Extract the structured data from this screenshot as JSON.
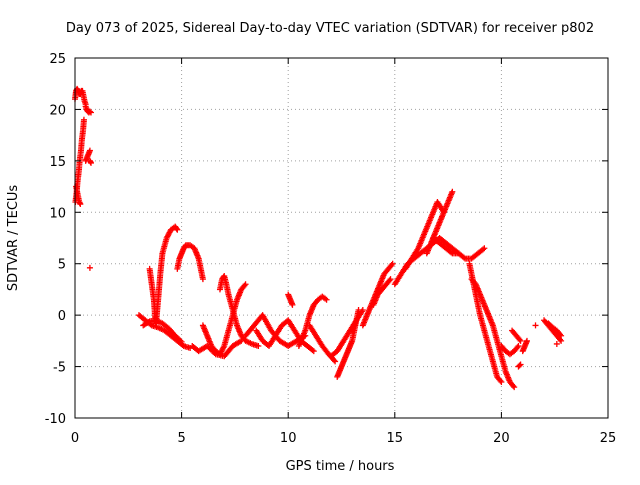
{
  "chart_data": {
    "type": "scatter",
    "title": "Day 073 of 2025, Sidereal Day-to-day VTEC variation (SDTVAR) for receiver p802",
    "xlabel": "GPS time / hours",
    "ylabel": "SDTVAR / TECUs",
    "xlim": [
      0,
      25
    ],
    "ylim": [
      -10,
      25
    ],
    "xticks": [
      0,
      5,
      10,
      15,
      20,
      25
    ],
    "yticks": [
      -10,
      -5,
      0,
      5,
      10,
      15,
      20,
      25
    ],
    "grid": true,
    "marker": "+",
    "series": [
      {
        "name": "SDTVAR",
        "color": "#ff0000",
        "segments": [
          {
            "x": [
              0.0,
              0.05,
              0.1,
              0.15,
              0.2,
              0.25,
              0.3,
              0.35,
              0.4,
              0.45,
              0.5
            ],
            "y": [
              21.0,
              21.8,
              22.0,
              21.8,
              21.5,
              21.5,
              21.8,
              21.8,
              21.3,
              20.8,
              20.5
            ]
          },
          {
            "x": [
              0.5,
              0.55,
              0.6,
              0.65,
              0.7,
              0.75
            ],
            "y": [
              20.3,
              20.0,
              19.8,
              19.7,
              19.8,
              19.7
            ]
          },
          {
            "x": [
              0.02,
              0.05,
              0.08,
              0.1,
              0.12,
              0.15,
              0.18,
              0.2,
              0.22,
              0.25,
              0.28,
              0.3,
              0.32,
              0.35,
              0.38,
              0.4,
              0.42
            ],
            "y": [
              11.0,
              11.5,
              12.0,
              12.5,
              13.0,
              13.5,
              14.0,
              14.5,
              15.0,
              15.5,
              16.0,
              16.5,
              17.0,
              17.5,
              18.0,
              18.5,
              19.0
            ]
          },
          {
            "x": [
              0.05,
              0.1,
              0.15,
              0.2,
              0.25
            ],
            "y": [
              12.5,
              12.0,
              11.5,
              11.0,
              10.8
            ]
          },
          {
            "x": [
              0.5,
              0.6,
              0.7
            ],
            "y": [
              15.0,
              15.5,
              16.0
            ]
          },
          {
            "x": [
              0.7,
              0.75
            ],
            "y": [
              15.0,
              14.8
            ]
          },
          {
            "x": [
              3.0,
              3.3,
              3.6,
              3.9,
              4.2,
              4.5,
              4.8,
              5.1,
              5.4
            ],
            "y": [
              0.0,
              -0.5,
              -1.0,
              -1.2,
              -1.5,
              -2.0,
              -2.5,
              -3.0,
              -3.2
            ]
          },
          {
            "x": [
              3.2,
              3.5,
              3.8,
              4.1,
              4.4,
              4.7,
              5.0
            ],
            "y": [
              -1.0,
              -0.6,
              -0.5,
              -0.8,
              -1.3,
              -2.0,
              -2.6
            ]
          },
          {
            "x": [
              3.5,
              3.6,
              3.7,
              3.75,
              3.8,
              3.9,
              4.0,
              4.1,
              4.3,
              4.5,
              4.7,
              4.8
            ],
            "y": [
              4.5,
              3.0,
              1.5,
              0.0,
              -0.8,
              1.5,
              4.0,
              6.0,
              7.5,
              8.3,
              8.6,
              8.3
            ]
          },
          {
            "x": [
              4.8,
              4.85,
              4.9,
              5.0,
              5.1,
              5.2,
              5.4,
              5.6,
              5.8,
              5.9,
              6.0
            ],
            "y": [
              4.5,
              5.0,
              5.5,
              6.0,
              6.5,
              6.8,
              6.8,
              6.5,
              5.5,
              4.5,
              3.5
            ]
          },
          {
            "x": [
              5.5,
              5.8,
              6.2,
              6.6,
              7.0,
              7.4,
              7.8
            ],
            "y": [
              -3.0,
              -3.5,
              -3.0,
              -3.8,
              -4.0,
              -3.0,
              -2.5
            ]
          },
          {
            "x": [
              6.0,
              6.2,
              6.4,
              6.6,
              6.8,
              7.0,
              7.2,
              7.4,
              7.6,
              7.8,
              8.0
            ],
            "y": [
              -1.0,
              -2.0,
              -3.0,
              -3.5,
              -3.8,
              -3.0,
              -1.5,
              0.0,
              1.5,
              2.5,
              3.0
            ]
          },
          {
            "x": [
              6.8,
              6.9,
              7.0,
              7.1,
              7.2,
              7.4,
              7.6,
              7.8,
              8.0,
              8.3,
              8.6
            ],
            "y": [
              2.5,
              3.5,
              3.8,
              3.0,
              2.0,
              0.5,
              -1.0,
              -2.0,
              -2.5,
              -2.8,
              -3.0
            ]
          },
          {
            "x": [
              8.0,
              8.4,
              8.8,
              9.2,
              9.6,
              10.0,
              10.4,
              10.8
            ],
            "y": [
              -2.0,
              -1.0,
              0.0,
              -1.5,
              -2.5,
              -3.0,
              -2.5,
              -2.0
            ]
          },
          {
            "x": [
              8.5,
              8.8,
              9.1,
              9.4,
              9.7,
              10.0,
              10.3,
              10.6,
              10.9,
              11.2
            ],
            "y": [
              -1.5,
              -2.5,
              -3.0,
              -2.0,
              -1.0,
              -0.5,
              -1.5,
              -2.5,
              -3.0,
              -3.5
            ]
          },
          {
            "x": [
              10.0,
              10.1,
              10.2
            ],
            "y": [
              2.0,
              1.5,
              1.0
            ]
          },
          {
            "x": [
              10.5,
              10.8,
              11.0,
              11.2,
              11.4,
              11.6,
              11.8
            ],
            "y": [
              -3.0,
              -1.5,
              0.0,
              1.0,
              1.5,
              1.8,
              1.5
            ]
          },
          {
            "x": [
              11.0,
              11.3,
              11.6,
              11.9,
              12.2
            ],
            "y": [
              -1.0,
              -2.0,
              -3.0,
              -3.8,
              -4.5
            ]
          },
          {
            "x": [
              12.0,
              12.3,
              12.6,
              12.9,
              13.2,
              13.5
            ],
            "y": [
              -4.0,
              -3.5,
              -2.5,
              -1.5,
              -0.5,
              0.5
            ]
          },
          {
            "x": [
              12.3,
              12.4,
              12.5,
              12.6,
              12.7,
              12.8,
              12.9,
              13.0,
              13.1,
              13.2,
              13.3
            ],
            "y": [
              -6.0,
              -5.5,
              -5.0,
              -4.5,
              -4.0,
              -3.5,
              -3.0,
              -2.5,
              -1.5,
              -0.5,
              0.5
            ]
          },
          {
            "x": [
              13.0,
              13.1,
              13.2
            ],
            "y": [
              -1.5,
              -1.0,
              -0.5
            ]
          },
          {
            "x": [
              13.5,
              13.7,
              13.9,
              14.1,
              14.3,
              14.5,
              14.7,
              14.9
            ],
            "y": [
              -1.0,
              0.0,
              1.0,
              2.0,
              3.0,
              4.0,
              4.5,
              5.0
            ]
          },
          {
            "x": [
              14.0,
              14.2,
              14.4,
              14.6,
              14.8
            ],
            "y": [
              1.0,
              2.0,
              2.5,
              3.0,
              3.5
            ]
          },
          {
            "x": [
              15.0,
              15.3,
              15.6,
              15.9,
              16.2,
              16.5,
              16.8,
              17.1,
              17.4,
              17.7,
              18.0
            ],
            "y": [
              3.0,
              4.0,
              5.0,
              5.5,
              6.0,
              6.5,
              7.0,
              7.5,
              7.0,
              6.5,
              6.0
            ]
          },
          {
            "x": [
              15.5,
              15.8,
              16.1,
              16.4,
              16.7,
              17.0,
              17.3
            ],
            "y": [
              4.5,
              5.5,
              6.5,
              8.0,
              9.5,
              11.0,
              10.0
            ]
          },
          {
            "x": [
              16.5,
              16.7,
              16.9,
              17.1,
              17.3,
              17.5,
              17.7
            ],
            "y": [
              6.0,
              7.0,
              8.0,
              9.0,
              10.0,
              11.0,
              12.0
            ]
          },
          {
            "x": [
              16.8,
              17.1,
              17.4,
              17.7,
              18.0,
              18.3,
              18.6,
              18.9,
              19.2
            ],
            "y": [
              7.5,
              7.0,
              6.5,
              6.0,
              6.0,
              5.5,
              5.5,
              6.0,
              6.5
            ]
          },
          {
            "x": [
              18.5,
              18.6,
              18.8,
              19.0,
              19.2,
              19.4,
              19.6,
              19.8,
              20.0
            ],
            "y": [
              5.0,
              4.0,
              2.0,
              0.0,
              -1.5,
              -3.0,
              -4.5,
              -6.0,
              -6.5
            ]
          },
          {
            "x": [
              18.6,
              18.8,
              19.0,
              19.2,
              19.4,
              19.6,
              19.8,
              20.0,
              20.2,
              20.4,
              20.6
            ],
            "y": [
              3.5,
              3.0,
              2.0,
              1.0,
              0.0,
              -1.0,
              -2.5,
              -4.0,
              -5.5,
              -6.5,
              -7.0
            ]
          },
          {
            "x": [
              20.0,
              20.2,
              20.4,
              20.6,
              20.8
            ],
            "y": [
              -3.0,
              -3.5,
              -3.8,
              -3.5,
              -3.0
            ]
          },
          {
            "x": [
              20.5,
              20.7,
              20.9
            ],
            "y": [
              -1.5,
              -2.0,
              -2.5
            ]
          },
          {
            "x": [
              20.8,
              20.9
            ],
            "y": [
              -5.0,
              -4.8
            ]
          },
          {
            "x": [
              21.0,
              21.1,
              21.2
            ],
            "y": [
              -3.5,
              -3.0,
              -2.5
            ]
          },
          {
            "x": [
              22.0,
              22.2,
              22.4,
              22.6,
              22.8
            ],
            "y": [
              -0.5,
              -1.0,
              -1.5,
              -2.0,
              -2.5
            ]
          },
          {
            "x": [
              22.2,
              22.4,
              22.6,
              22.8
            ],
            "y": [
              -0.8,
              -1.2,
              -1.5,
              -2.0
            ]
          }
        ],
        "isolated_points": {
          "x": [
            0.7,
            21.6,
            22.6
          ],
          "y": [
            4.6,
            -1.0,
            -2.8
          ]
        }
      }
    ]
  }
}
